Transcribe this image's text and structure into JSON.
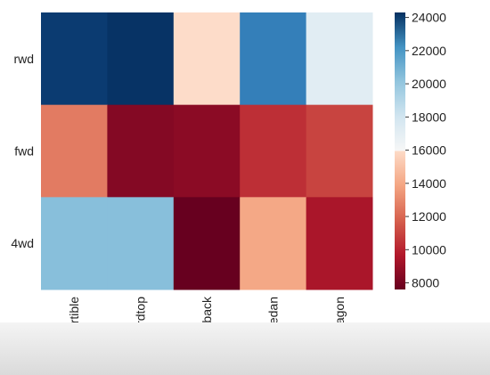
{
  "chart_data": {
    "type": "heatmap",
    "title": "",
    "xlabel": "",
    "ylabel": "",
    "x_categories": [
      "convertible",
      "hardtop",
      "hatchback",
      "sedan",
      "wagon"
    ],
    "y_categories": [
      "rwd",
      "fwd",
      "4wd"
    ],
    "values": [
      [
        23950,
        24200,
        14350,
        21700,
        16900
      ],
      [
        11600,
        8250,
        8400,
        9800,
        10300
      ],
      [
        19500,
        19500,
        7600,
        12700,
        9100
      ]
    ],
    "color_range": [
      7600,
      24300
    ],
    "colormap": "RdBu",
    "colorbar_ticks": [
      8000,
      10000,
      12000,
      14000,
      16000,
      18000,
      20000,
      22000,
      24000
    ],
    "colorbar_tick_labels": [
      "8000",
      "10000",
      "12000",
      "14000",
      "16000",
      "18000",
      "20000",
      "22000",
      "24000"
    ]
  }
}
